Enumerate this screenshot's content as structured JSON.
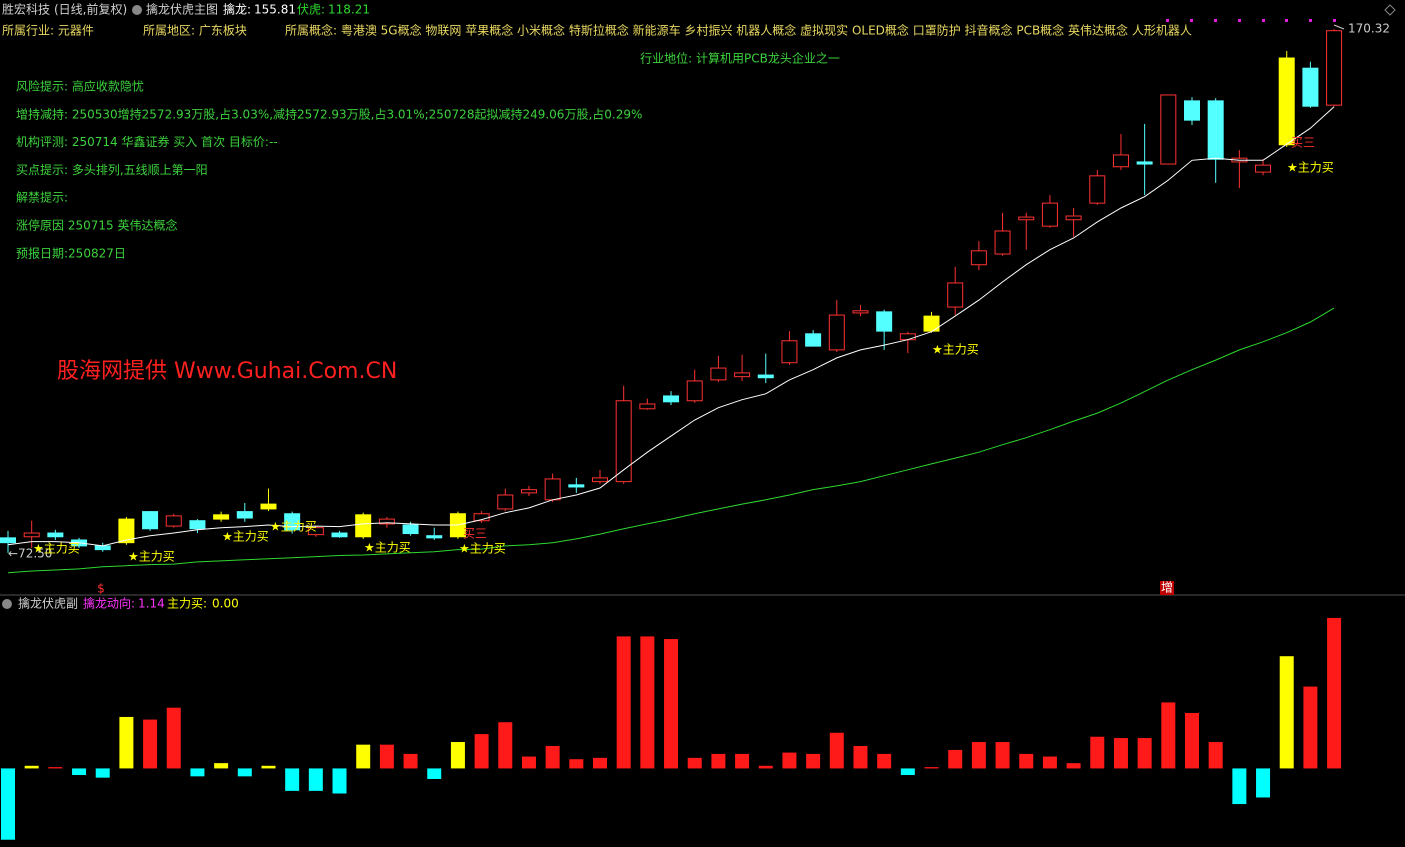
{
  "header": {
    "stock": "胜宏科技",
    "period": "(日线,前复权)",
    "indicator": "擒龙伏虎主图"
  },
  "info": {
    "industry": "所属行业: 元器件",
    "region": "所属地区: 广东板块",
    "concepts": "所属概念: 粤港澳 5G概念 物联网 苹果概念 小米概念 特斯拉概念 新能源车 乡村振兴 机器人概念 虚拟现实 OLED概念 口罩防护 抖音概念 PCB概念 英伟达概念 人形机器人",
    "position": "行业地位: 计算机用PCB龙头企业之一",
    "notes": [
      "风险提示: 高应收款隐忧",
      "增持减持: 250530增持2572.93万股,占3.03%,减持2572.93万股,占3.01%;250728起拟减持249.06万股,占0.29%",
      "机构评测: 250714 华鑫证券 买入 首次 目标价:--",
      "买点提示: 多头排列,五线顺上第一阳",
      "解禁提示:",
      "涨停原因 250715 英伟达概念",
      "预报日期:250827日"
    ],
    "watermark": "股海网提供 Www.Guhai.Com.CN"
  },
  "chart_data": [
    {
      "type": "candlestick",
      "open": [
        75.3,
        75.5,
        76.2,
        74.9,
        73.8,
        74.4,
        80.2,
        77.5,
        78.5,
        78.8,
        80.2,
        80.7,
        79.8,
        75.9,
        76.2,
        75.5,
        77.9,
        77.7,
        75.7,
        75.5,
        78.5,
        80.7,
        83.7,
        82.4,
        85.2,
        85.8,
        85.8,
        99.4,
        101.8,
        100.9,
        104.8,
        105.4,
        105.7,
        108.0,
        113.4,
        110.4,
        117.3,
        117.5,
        112.3,
        113.9,
        118.4,
        126.3,
        128.3,
        134.7,
        133.5,
        134.7,
        137.8,
        144.6,
        145.5,
        145.1,
        156.9,
        156.9,
        145.5,
        143.6,
        148.7,
        163.0,
        156.1
      ],
      "high": [
        76.6,
        78.5,
        76.8,
        75.3,
        74.4,
        79.2,
        80.3,
        79.8,
        78.8,
        80.2,
        81.8,
        84.5,
        80.2,
        77.5,
        76.6,
        80.0,
        79.2,
        78.3,
        77.2,
        80.2,
        80.3,
        84.5,
        85.0,
        87.3,
        86.5,
        88.0,
        103.7,
        101.3,
        102.7,
        106.7,
        109.3,
        109.5,
        109.7,
        113.9,
        114.1,
        119.7,
        118.8,
        117.9,
        113.8,
        117.5,
        125.9,
        130.7,
        136.0,
        136.0,
        139.3,
        136.9,
        144.0,
        150.7,
        152.6,
        158.0,
        157.6,
        157.4,
        147.7,
        146.0,
        166.2,
        164.2,
        170.32
      ],
      "low": [
        72.5,
        73.4,
        74.9,
        73.4,
        72.7,
        74.0,
        76.6,
        77.2,
        76.2,
        78.3,
        78.3,
        80.3,
        76.1,
        75.5,
        75.3,
        75.1,
        77.2,
        75.7,
        74.9,
        75.1,
        78.1,
        80.3,
        83.1,
        82.0,
        83.7,
        85.4,
        85.4,
        99.2,
        100.1,
        100.5,
        104.4,
        104.6,
        104.2,
        107.6,
        111.0,
        110.0,
        116.7,
        110.4,
        109.8,
        113.6,
        116.9,
        125.3,
        128.0,
        129.1,
        133.2,
        131.5,
        137.5,
        144.0,
        139.3,
        145.1,
        152.4,
        141.6,
        140.6,
        143.0,
        148.3,
        155.6,
        155.9
      ],
      "close": [
        74.4,
        76.2,
        75.5,
        73.8,
        73.1,
        78.8,
        77.0,
        79.4,
        77.0,
        79.6,
        79.0,
        81.6,
        76.8,
        77.2,
        75.5,
        79.6,
        78.8,
        76.1,
        75.3,
        79.8,
        79.8,
        83.3,
        84.3,
        86.3,
        84.8,
        86.5,
        100.9,
        100.3,
        100.7,
        104.6,
        107.0,
        106.1,
        105.2,
        112.1,
        111.1,
        116.9,
        117.7,
        113.9,
        113.4,
        116.7,
        122.9,
        128.9,
        132.6,
        135.2,
        137.8,
        135.4,
        142.9,
        146.8,
        145.1,
        158.0,
        153.3,
        146.0,
        146.2,
        144.9,
        164.9,
        155.9,
        170.0
      ],
      "up_color": "#ff3232",
      "down_color": "#54ffff",
      "signal_color": "#ffff00",
      "signal_candles": [
        5,
        9,
        11,
        15,
        19,
        39,
        54
      ],
      "series": [
        {
          "name": "擒龙:",
          "color": "#ffffff",
          "values": [
            74.0,
            74.6,
            74.6,
            74.4,
            73.8,
            74.9,
            75.7,
            76.2,
            76.8,
            77.2,
            77.4,
            77.7,
            77.4,
            77.5,
            77.4,
            77.9,
            78.1,
            77.9,
            77.7,
            77.7,
            78.7,
            80.0,
            80.9,
            82.4,
            83.3,
            84.6,
            88.0,
            91.3,
            94.3,
            97.3,
            99.6,
            101.1,
            102.2,
            104.8,
            106.7,
            108.9,
            110.4,
            111.3,
            112.3,
            113.8,
            116.7,
            119.7,
            123.1,
            126.3,
            129.1,
            131.3,
            134.3,
            136.9,
            139.0,
            142.1,
            145.8,
            146.2,
            145.8,
            145.8,
            148.8,
            151.8,
            155.81
          ]
        },
        {
          "name": "伏虎:",
          "color": "#2ed82e",
          "values": [
            68.8,
            69.1,
            69.3,
            69.5,
            69.9,
            70.1,
            70.3,
            70.4,
            70.8,
            71.0,
            71.2,
            71.4,
            71.6,
            71.8,
            72.0,
            72.1,
            72.3,
            72.5,
            72.7,
            73.1,
            73.2,
            73.8,
            74.0,
            74.4,
            75.1,
            76.0,
            77.0,
            77.9,
            78.8,
            79.8,
            80.7,
            81.6,
            82.4,
            83.3,
            84.3,
            85.0,
            85.8,
            86.9,
            88.0,
            89.1,
            90.2,
            91.3,
            92.7,
            94.0,
            95.5,
            97.1,
            98.6,
            100.5,
            102.6,
            104.8,
            106.7,
            108.5,
            110.4,
            111.9,
            113.6,
            115.6,
            118.21
          ]
        }
      ],
      "ylim": [
        65,
        172
      ],
      "high_label": 170.32,
      "low_label": {
        "value": 72.5,
        "label": "←72.50"
      },
      "annotations": [
        "★主力买",
        "★主力买",
        "★主力买",
        "★主力买",
        "★主力买",
        "★主力买",
        "★主力买",
        "★主力买",
        "买三",
        "买三"
      ],
      "markers": [
        "$",
        "增"
      ]
    },
    {
      "type": "bar",
      "title": "擒龙伏虎副",
      "series": [
        {
          "name": "擒龙动向:",
          "color": "#ff33ff",
          "values": [
            -0.54,
            0.02,
            0.01,
            -0.05,
            -0.07,
            0.39,
            0.37,
            0.46,
            -0.06,
            0.04,
            -0.06,
            0.02,
            -0.17,
            -0.17,
            -0.19,
            0.18,
            0.18,
            0.11,
            -0.08,
            0.2,
            0.26,
            0.35,
            0.09,
            0.17,
            0.07,
            0.08,
            1.0,
            1.0,
            0.98,
            0.08,
            0.11,
            0.11,
            0.02,
            0.12,
            0.11,
            0.27,
            0.17,
            0.11,
            -0.05,
            0.01,
            0.14,
            0.2,
            0.2,
            0.11,
            0.09,
            0.04,
            0.24,
            0.23,
            0.23,
            0.5,
            0.42,
            0.2,
            -0.27,
            -0.22,
            0.85,
            0.62,
            1.14
          ]
        }
      ],
      "readouts": [
        {
          "name": "主力买:",
          "color": "#ffff00",
          "value": 0,
          "label": "0.00"
        }
      ],
      "positive_color": "#ff1a1a",
      "negative_color": "#00ffff",
      "signal_color": "#ffff00",
      "signal_bars": [
        1,
        5,
        9,
        11,
        15,
        19,
        54
      ],
      "ylim": [
        -0.58,
        1.2
      ]
    }
  ]
}
